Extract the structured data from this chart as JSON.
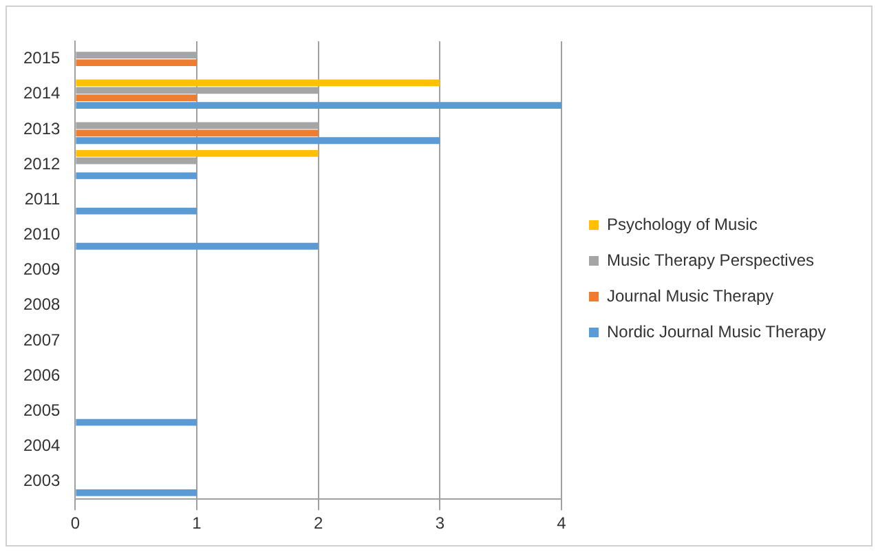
{
  "chart_data": {
    "type": "bar",
    "orientation": "horizontal",
    "categories": [
      "2015",
      "2014",
      "2013",
      "2012",
      "2011",
      "2010",
      "2009",
      "2008",
      "2007",
      "2006",
      "2005",
      "2004",
      "2003"
    ],
    "series": [
      {
        "name": "Psychology of Music",
        "color": "#ffc000",
        "values": [
          0,
          3,
          0,
          2,
          0,
          0,
          0,
          0,
          0,
          0,
          0,
          0,
          0
        ]
      },
      {
        "name": "Music Therapy Perspectives",
        "color": "#a5a5a5",
        "values": [
          1,
          2,
          2,
          1,
          0,
          0,
          0,
          0,
          0,
          0,
          0,
          0,
          0
        ]
      },
      {
        "name": "Journal Music Therapy",
        "color": "#ed7d31",
        "values": [
          1,
          1,
          2,
          0,
          0,
          0,
          0,
          0,
          0,
          0,
          0,
          0,
          0
        ]
      },
      {
        "name": "Nordic Journal Music Therapy",
        "color": "#5b9bd5",
        "values": [
          0,
          4,
          3,
          1,
          1,
          2,
          0,
          0,
          0,
          0,
          1,
          0,
          1
        ]
      }
    ],
    "xlim": [
      0,
      4
    ],
    "xticks": [
      0,
      1,
      2,
      3,
      4
    ],
    "grid": "x",
    "legend": "right"
  }
}
